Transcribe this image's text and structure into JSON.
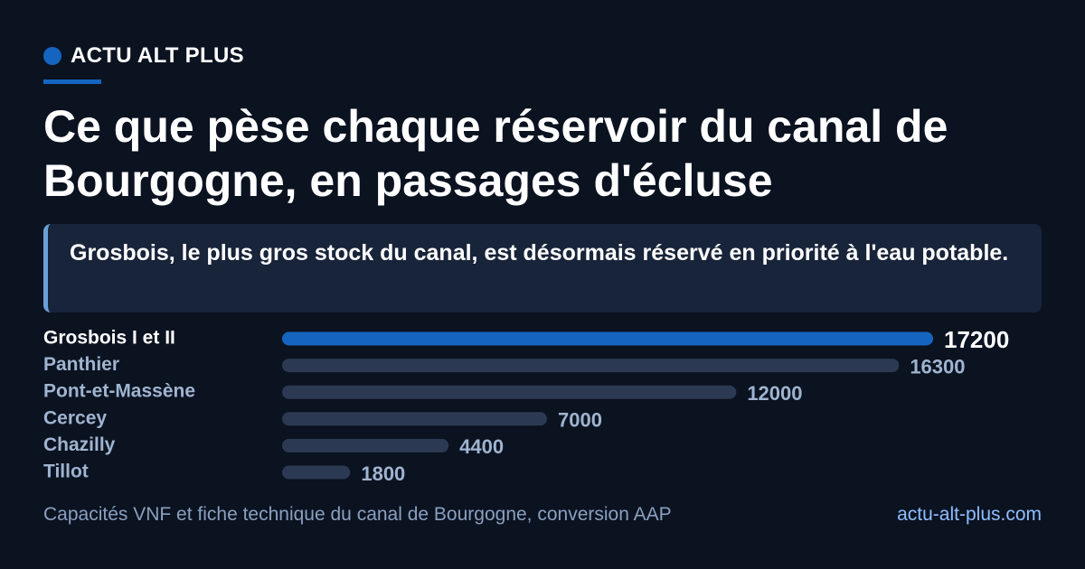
{
  "brand": {
    "name": "ACTU ALT PLUS"
  },
  "headline": "Ce que pèse chaque réservoir du canal de Bourgogne, en passages d'écluse",
  "subtitle": "Grosbois, le plus gros stock du canal, est désormais réservé en priorité à l'eau potable.",
  "footer": {
    "source": "Capacités VNF et fiche technique du canal de Bourgogne, conversion AAP",
    "site": "actu-alt-plus.com"
  },
  "colors": {
    "background": "#0b1220",
    "accent": "#1565c0",
    "bar_muted": "#2b3a52",
    "label_muted": "#9fb4d0",
    "highlight_text": "#ffffff"
  },
  "chart_data": {
    "type": "bar",
    "orientation": "horizontal",
    "categories": [
      "Grosbois I et II",
      "Panthier",
      "Pont-et-Massène",
      "Cercey",
      "Chazilly",
      "Tillot"
    ],
    "values": [
      17200,
      16300,
      12000,
      7000,
      4400,
      1800
    ],
    "highlight_index": 0,
    "xlim": [
      0,
      17200
    ],
    "grid": false
  }
}
